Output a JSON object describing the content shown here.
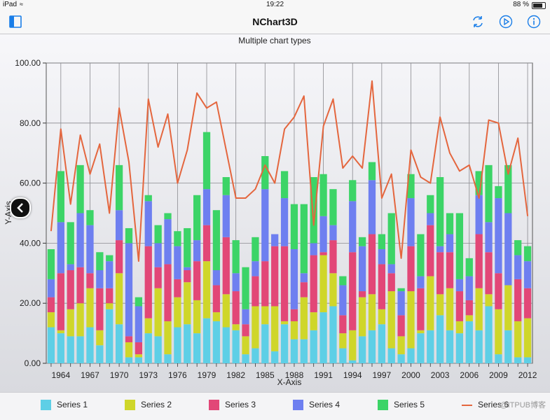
{
  "status": {
    "carrier": "iPad",
    "time": "19:22",
    "battery": "88 %"
  },
  "header": {
    "title": "NChart3D"
  },
  "icons": {
    "sidebar": "sidebar-toggle-icon",
    "refresh": "refresh-icon",
    "play": "play-icon",
    "info": "info-icon",
    "collapse": "chevron-left-icon"
  },
  "watermark": "@ITPUB博客",
  "chart_data": {
    "type": "bar",
    "stacked": true,
    "title": "Multiple chart types",
    "xlabel": "X-Axis",
    "ylabel": "Y-Axis",
    "ylim": [
      0,
      100
    ],
    "yticks": [
      "0.00",
      "20.00",
      "40.00",
      "60.00",
      "80.00",
      "100.00"
    ],
    "xtick_labels": [
      "1964",
      "1967",
      "1970",
      "1973",
      "1976",
      "1979",
      "1982",
      "1985",
      "1988",
      "1991",
      "1994",
      "1997",
      "2000",
      "2003",
      "2006",
      "2009",
      "2012"
    ],
    "grid": true,
    "legend_position": "bottom",
    "categories": [
      "1963",
      "1964",
      "1965",
      "1966",
      "1967",
      "1968",
      "1969",
      "1970",
      "1971",
      "1972",
      "1973",
      "1974",
      "1975",
      "1976",
      "1977",
      "1978",
      "1979",
      "1980",
      "1981",
      "1982",
      "1983",
      "1984",
      "1985",
      "1986",
      "1987",
      "1988",
      "1989",
      "1990",
      "1991",
      "1992",
      "1993",
      "1994",
      "1995",
      "1996",
      "1997",
      "1998",
      "1999",
      "2000",
      "2001",
      "2002",
      "2003",
      "2004",
      "2005",
      "2006",
      "2007",
      "2008",
      "2009",
      "2010",
      "2011",
      "2012"
    ],
    "series": [
      {
        "name": "Series 1",
        "color": "#5ecfe6",
        "values": [
          12,
          10,
          9,
          9,
          12,
          6,
          18,
          13,
          2,
          2,
          10,
          9,
          3,
          12,
          13,
          10,
          15,
          14,
          12,
          11,
          3,
          5,
          13,
          4,
          13,
          8,
          8,
          11,
          17,
          19,
          5,
          1,
          9,
          11,
          13,
          5,
          3,
          5,
          10,
          11,
          16,
          11,
          10,
          14,
          11,
          19,
          3,
          11,
          2,
          2
        ]
      },
      {
        "name": "Series 2",
        "color": "#cfd62a",
        "values": [
          5,
          1,
          9,
          11,
          13,
          5,
          2,
          17,
          5,
          1,
          5,
          16,
          11,
          10,
          14,
          11,
          19,
          3,
          11,
          2,
          6,
          14,
          6,
          15,
          1,
          6,
          14,
          6,
          19,
          11,
          5,
          10,
          13,
          12,
          5,
          19,
          6,
          19,
          1,
          18,
          7,
          14,
          4,
          2,
          14,
          4,
          15,
          15,
          12,
          13
        ]
      },
      {
        "name": "Series 3",
        "color": "#e24777",
        "values": [
          5,
          19,
          13,
          12,
          5,
          14,
          5,
          11,
          2,
          4,
          24,
          7,
          19,
          6,
          4,
          13,
          12,
          9,
          19,
          11,
          4,
          10,
          15,
          20,
          25,
          4,
          5,
          19,
          1,
          11,
          6,
          26,
          2,
          20,
          15,
          6,
          7,
          15,
          14,
          17,
          14,
          12,
          10,
          5,
          18,
          14,
          12,
          0,
          14,
          10
        ]
      },
      {
        "name": "Series 4",
        "color": "#6e7ff0",
        "values": [
          6,
          17,
          2,
          18,
          16,
          6,
          9,
          10,
          31,
          12,
          15,
          8,
          15,
          11,
          1,
          7,
          12,
          5,
          14,
          6,
          5,
          5,
          24,
          4,
          16,
          20,
          3,
          4,
          12,
          5,
          10,
          17,
          15,
          18,
          5,
          3,
          8,
          16,
          4,
          4,
          2,
          6,
          4,
          8,
          13,
          10,
          25,
          24,
          8,
          9
        ]
      },
      {
        "name": "Series 5",
        "color": "#3cd467",
        "values": [
          10,
          17,
          14,
          16,
          5,
          6,
          2,
          15,
          5,
          3,
          2,
          6,
          2,
          5,
          13,
          15,
          19,
          20,
          6,
          11,
          14,
          8,
          11,
          0,
          9,
          15,
          23,
          22,
          14,
          12,
          3,
          7,
          3,
          6,
          5,
          17,
          1,
          8,
          14,
          6,
          23,
          7,
          22,
          6,
          8,
          19,
          4,
          16,
          5,
          5
        ]
      },
      {
        "name": "Series 6",
        "color": "#e4663e",
        "chart_type": "line",
        "values": [
          44,
          78,
          53,
          76,
          63,
          73,
          50,
          85,
          67,
          34,
          88,
          72,
          83,
          60,
          71,
          90,
          85,
          87,
          71,
          55,
          55,
          58,
          66,
          60,
          78,
          82,
          89,
          46,
          79,
          88,
          65,
          69,
          65,
          94,
          55,
          63,
          35,
          71,
          62,
          60,
          82,
          70,
          64,
          66,
          55,
          81,
          80,
          63,
          75,
          49
        ]
      }
    ]
  }
}
